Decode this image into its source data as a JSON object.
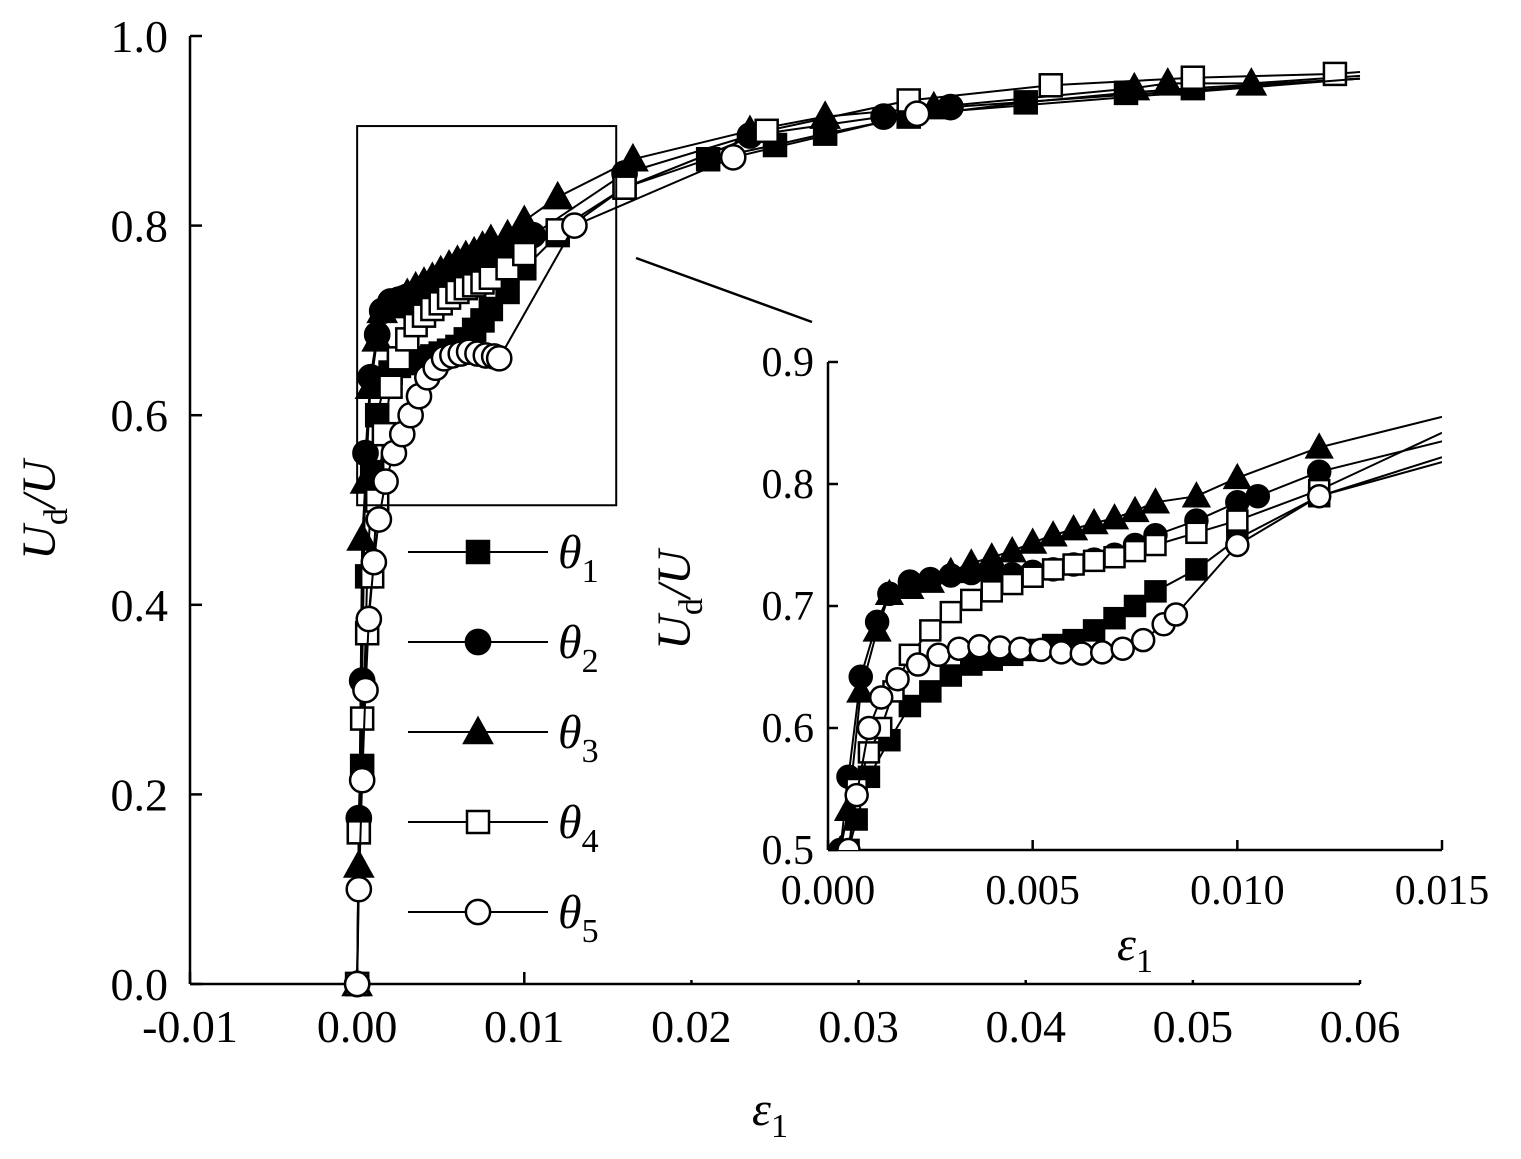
{
  "chart_data": [
    {
      "type": "line",
      "title": "",
      "xlabel": {
        "main": "ε",
        "sub": "1"
      },
      "ylabel": {
        "main": "U",
        "sub": "d",
        "tail": "/U"
      },
      "xlim": [
        -0.01,
        0.06
      ],
      "ylim": [
        0.0,
        1.0
      ],
      "xticks": [
        "-0.01",
        "0.00",
        "0.01",
        "0.02",
        "0.03",
        "0.04",
        "0.05",
        "0.06"
      ],
      "xtick_values": [
        -0.01,
        0.0,
        0.01,
        0.02,
        0.03,
        0.04,
        0.05,
        0.06
      ],
      "yticks": [
        "0.0",
        "0.2",
        "0.4",
        "0.6",
        "0.8",
        "1.0"
      ],
      "ytick_values": [
        0.0,
        0.2,
        0.4,
        0.6,
        0.8,
        1.0
      ],
      "legend_position": "left-middle",
      "series": [
        {
          "legend_main": "θ",
          "legend_sub": "1",
          "marker": "square-filled",
          "x": [
            0.0,
            0.0001,
            0.0003,
            0.0006,
            0.0009,
            0.0012,
            0.0016,
            0.002,
            0.0025,
            0.003,
            0.0035,
            0.004,
            0.0045,
            0.005,
            0.0055,
            0.006,
            0.0065,
            0.007,
            0.0075,
            0.008,
            0.009,
            0.01,
            0.012,
            0.016,
            0.021,
            0.025,
            0.028,
            0.033,
            0.04,
            0.046,
            0.05,
            0.06
          ],
          "y": [
            0.0,
            0.16,
            0.23,
            0.43,
            0.54,
            0.6,
            0.63,
            0.645,
            0.652,
            0.655,
            0.658,
            0.66,
            0.662,
            0.665,
            0.668,
            0.672,
            0.68,
            0.69,
            0.7,
            0.712,
            0.73,
            0.755,
            0.79,
            0.84,
            0.87,
            0.885,
            0.897,
            0.915,
            0.93,
            0.94,
            0.945,
            0.955
          ]
        },
        {
          "legend_main": "θ",
          "legend_sub": "2",
          "marker": "circle-filled",
          "x": [
            0.0,
            0.0001,
            0.0003,
            0.0005,
            0.0008,
            0.0012,
            0.0015,
            0.002,
            0.0025,
            0.003,
            0.0035,
            0.004,
            0.0045,
            0.005,
            0.0055,
            0.006,
            0.0065,
            0.007,
            0.0075,
            0.008,
            0.009,
            0.01,
            0.0105,
            0.016,
            0.0235,
            0.0315,
            0.0355,
            0.06
          ],
          "y": [
            0.0,
            0.175,
            0.32,
            0.56,
            0.64,
            0.685,
            0.71,
            0.72,
            0.722,
            0.725,
            0.727,
            0.725,
            0.726,
            0.728,
            0.73,
            0.734,
            0.738,
            0.742,
            0.75,
            0.758,
            0.77,
            0.785,
            0.79,
            0.855,
            0.895,
            0.915,
            0.925,
            0.955
          ]
        },
        {
          "legend_main": "θ",
          "legend_sub": "3",
          "marker": "triangle-filled",
          "x": [
            0.0,
            0.0001,
            0.0003,
            0.0005,
            0.0008,
            0.0012,
            0.0015,
            0.002,
            0.0025,
            0.003,
            0.0035,
            0.004,
            0.0045,
            0.005,
            0.0055,
            0.006,
            0.0065,
            0.007,
            0.0075,
            0.008,
            0.009,
            0.01,
            0.012,
            0.0165,
            0.0235,
            0.028,
            0.0345,
            0.0465,
            0.0485,
            0.0535,
            0.06
          ],
          "y": [
            0.0,
            0.125,
            0.47,
            0.53,
            0.63,
            0.68,
            0.71,
            0.715,
            0.72,
            0.728,
            0.735,
            0.74,
            0.745,
            0.752,
            0.758,
            0.763,
            0.768,
            0.772,
            0.778,
            0.785,
            0.79,
            0.805,
            0.83,
            0.87,
            0.9,
            0.915,
            0.925,
            0.945,
            0.95,
            0.95,
            0.958
          ]
        },
        {
          "legend_main": "θ",
          "legend_sub": "4",
          "marker": "square-open",
          "x": [
            0.0,
            0.0001,
            0.0003,
            0.0006,
            0.0009,
            0.0012,
            0.0016,
            0.002,
            0.0025,
            0.003,
            0.0035,
            0.004,
            0.0045,
            0.005,
            0.0055,
            0.006,
            0.0065,
            0.007,
            0.0075,
            0.008,
            0.009,
            0.01,
            0.012,
            0.016,
            0.0245,
            0.033,
            0.0415,
            0.05,
            0.0585,
            0.06
          ],
          "y": [
            0.0,
            0.16,
            0.28,
            0.37,
            0.43,
            0.51,
            0.58,
            0.63,
            0.66,
            0.68,
            0.695,
            0.705,
            0.712,
            0.718,
            0.724,
            0.73,
            0.734,
            0.737,
            0.74,
            0.745,
            0.755,
            0.77,
            0.795,
            0.84,
            0.9,
            0.932,
            0.948,
            0.956,
            0.96,
            0.962
          ]
        },
        {
          "legend_main": "θ",
          "legend_sub": "5",
          "marker": "circle-open",
          "x": [
            0.0,
            0.0001,
            0.0003,
            0.0005,
            0.0007,
            0.001,
            0.0013,
            0.0017,
            0.0022,
            0.0027,
            0.0032,
            0.0037,
            0.0042,
            0.0047,
            0.0052,
            0.0057,
            0.0062,
            0.0067,
            0.0072,
            0.0077,
            0.0082,
            0.0085,
            0.013,
            0.0225,
            0.0335,
            0.06
          ],
          "y": [
            0.0,
            0.1,
            0.215,
            0.31,
            0.385,
            0.445,
            0.49,
            0.53,
            0.56,
            0.58,
            0.6,
            0.62,
            0.64,
            0.65,
            0.66,
            0.663,
            0.665,
            0.667,
            0.665,
            0.663,
            0.662,
            0.66,
            0.8,
            0.872,
            0.918,
            0.955
          ]
        }
      ]
    },
    {
      "type": "line",
      "title": "",
      "xlabel": {
        "main": "ε",
        "sub": "1"
      },
      "ylabel": {
        "main": "U",
        "sub": "d",
        "tail": "/U"
      },
      "xlim": [
        0.0,
        0.015
      ],
      "ylim": [
        0.5,
        0.9
      ],
      "xticks": [
        "0.000",
        "0.005",
        "0.010",
        "0.015"
      ],
      "xtick_values": [
        0.0,
        0.005,
        0.01,
        0.015
      ],
      "yticks": [
        "0.5",
        "0.6",
        "0.7",
        "0.8",
        "0.9"
      ],
      "ytick_values": [
        0.5,
        0.6,
        0.7,
        0.8,
        0.9
      ],
      "zoom_region": {
        "x": [
          0.0,
          0.015
        ],
        "y": [
          0.5,
          0.9
        ]
      },
      "series": [
        {
          "marker": "square-filled",
          "x": [
            0.0005,
            0.0007,
            0.001,
            0.0015,
            0.002,
            0.0025,
            0.003,
            0.0035,
            0.004,
            0.0045,
            0.005,
            0.0055,
            0.006,
            0.0065,
            0.007,
            0.0075,
            0.008,
            0.009,
            0.01,
            0.012,
            0.015
          ],
          "y": [
            0.5,
            0.525,
            0.56,
            0.59,
            0.618,
            0.63,
            0.643,
            0.652,
            0.656,
            0.66,
            0.664,
            0.668,
            0.672,
            0.68,
            0.69,
            0.7,
            0.712,
            0.73,
            0.755,
            0.79,
            0.822
          ]
        },
        {
          "marker": "circle-filled",
          "x": [
            0.0003,
            0.0005,
            0.0008,
            0.0012,
            0.0015,
            0.002,
            0.0025,
            0.003,
            0.0035,
            0.004,
            0.0045,
            0.005,
            0.0055,
            0.006,
            0.0065,
            0.007,
            0.0075,
            0.008,
            0.009,
            0.01,
            0.0105,
            0.012,
            0.015
          ],
          "y": [
            0.5,
            0.56,
            0.642,
            0.687,
            0.71,
            0.72,
            0.722,
            0.725,
            0.727,
            0.725,
            0.726,
            0.728,
            0.73,
            0.734,
            0.738,
            0.742,
            0.75,
            0.758,
            0.77,
            0.785,
            0.79,
            0.81,
            0.835
          ]
        },
        {
          "marker": "triangle-filled",
          "x": [
            0.0003,
            0.0005,
            0.0008,
            0.0012,
            0.0015,
            0.002,
            0.0025,
            0.003,
            0.0035,
            0.004,
            0.0045,
            0.005,
            0.0055,
            0.006,
            0.0065,
            0.007,
            0.0075,
            0.008,
            0.009,
            0.01,
            0.012,
            0.015
          ],
          "y": [
            0.5,
            0.533,
            0.63,
            0.68,
            0.71,
            0.715,
            0.72,
            0.728,
            0.735,
            0.74,
            0.745,
            0.752,
            0.758,
            0.763,
            0.768,
            0.772,
            0.778,
            0.785,
            0.79,
            0.805,
            0.83,
            0.855
          ]
        },
        {
          "marker": "square-open",
          "x": [
            0.0005,
            0.0007,
            0.001,
            0.0013,
            0.0016,
            0.002,
            0.0025,
            0.003,
            0.0035,
            0.004,
            0.0045,
            0.005,
            0.0055,
            0.006,
            0.0065,
            0.007,
            0.0075,
            0.008,
            0.009,
            0.01,
            0.012,
            0.015
          ],
          "y": [
            0.5,
            0.55,
            0.58,
            0.6,
            0.63,
            0.66,
            0.68,
            0.695,
            0.705,
            0.712,
            0.718,
            0.724,
            0.73,
            0.734,
            0.737,
            0.74,
            0.745,
            0.75,
            0.76,
            0.77,
            0.795,
            0.842
          ]
        },
        {
          "marker": "circle-open",
          "x": [
            0.0005,
            0.0007,
            0.001,
            0.0013,
            0.0017,
            0.0022,
            0.0027,
            0.0032,
            0.0037,
            0.0042,
            0.0047,
            0.0052,
            0.0057,
            0.0062,
            0.0067,
            0.0072,
            0.0077,
            0.0082,
            0.0085,
            0.01,
            0.012,
            0.015
          ],
          "y": [
            0.5,
            0.545,
            0.6,
            0.625,
            0.64,
            0.652,
            0.66,
            0.665,
            0.667,
            0.666,
            0.665,
            0.664,
            0.662,
            0.661,
            0.662,
            0.665,
            0.672,
            0.685,
            0.693,
            0.75,
            0.79,
            0.818
          ]
        }
      ]
    }
  ]
}
